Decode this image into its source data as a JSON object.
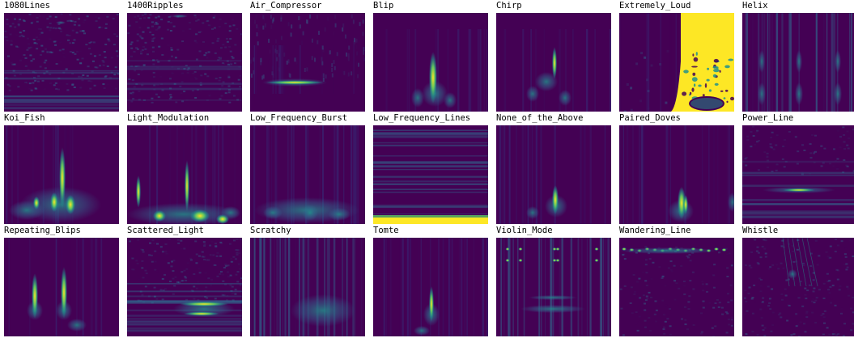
{
  "palette": {
    "bg": "#440154",
    "low": "#3b1d6b",
    "mid": "#31688e",
    "teal": "#21918c",
    "green": "#5ec962",
    "yellow": "#fde725"
  },
  "panels": [
    {
      "label": "1080Lines",
      "feature": "noise-lines"
    },
    {
      "label": "1400Ripples",
      "feature": "noise-ripple"
    },
    {
      "label": "Air_Compressor",
      "feature": "hline-mid"
    },
    {
      "label": "Blip",
      "feature": "spike"
    },
    {
      "label": "Chirp",
      "feature": "chirp"
    },
    {
      "label": "Extremely_Loud",
      "feature": "loud"
    },
    {
      "label": "Helix",
      "feature": "helix"
    },
    {
      "label": "Koi_Fish",
      "feature": "koi"
    },
    {
      "label": "Light_Modulation",
      "feature": "lightmod"
    },
    {
      "label": "Low_Frequency_Burst",
      "feature": "lfburst"
    },
    {
      "label": "Low_Frequency_Lines",
      "feature": "lflines"
    },
    {
      "label": "None_of_the_Above",
      "feature": "spike-low"
    },
    {
      "label": "Paired_Doves",
      "feature": "doves"
    },
    {
      "label": "Power_Line",
      "feature": "powerline"
    },
    {
      "label": "Repeating_Blips",
      "feature": "rep-blips"
    },
    {
      "label": "Scattered_Light",
      "feature": "scattered"
    },
    {
      "label": "Scratchy",
      "feature": "scratchy"
    },
    {
      "label": "Tomte",
      "feature": "tomte"
    },
    {
      "label": "Violin_Mode",
      "feature": "violin"
    },
    {
      "label": "Wandering_Line",
      "feature": "wandering"
    },
    {
      "label": "Whistle",
      "feature": "whistle"
    }
  ]
}
